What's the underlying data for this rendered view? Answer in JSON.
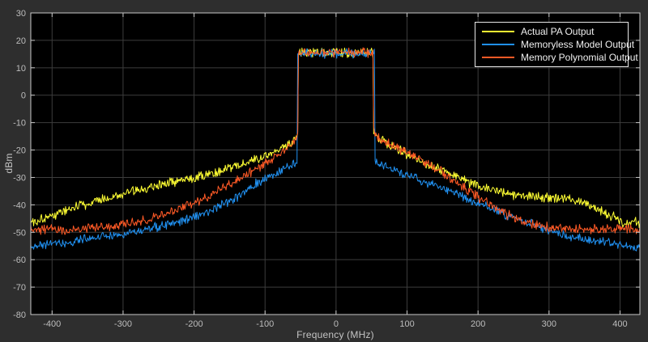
{
  "figure": {
    "background": "#2e2e2e",
    "plot_background": "#000000",
    "grid_color": "#3d3d3d",
    "axis_box_color": "#c9c9c9",
    "tick_label_color": "#bdbdbd",
    "axis_label_color": "#c4c4c4",
    "legend_background": "#000000",
    "legend_border_color": "#e8e8e8",
    "legend_text_color": "#f0f0f0"
  },
  "legend": {
    "entries": [
      {
        "label": "Actual PA Output",
        "color": "#ffff33"
      },
      {
        "label": "Memoryless Model Output",
        "color": "#2090f0"
      },
      {
        "label": "Memory Polynomial Output",
        "color": "#ff5a26"
      }
    ]
  },
  "chart_data": {
    "type": "line",
    "title": "",
    "xlabel": "Frequency (MHz)",
    "ylabel": "dBm",
    "xlim": [
      -430,
      428
    ],
    "ylim": [
      -80,
      30
    ],
    "xticks": [
      -400,
      -300,
      -200,
      -100,
      0,
      100,
      200,
      300,
      400
    ],
    "yticks": [
      -80,
      -70,
      -60,
      -50,
      -40,
      -30,
      -20,
      -10,
      0,
      10,
      20,
      30
    ],
    "grid": true,
    "legend_position": "top-right",
    "sample_step_mhz": 1,
    "description": "Power spectra: wideband signal occupying roughly -50 to +50 MHz at about +15.5 dBm with spectral-regrowth skirts. Values in envelope arrays are [frequency_MHz, dBm] mean-level breakpoints read from the plot; noise_db_pp is the visible peak-to-peak fuzz of each trace.",
    "series": [
      {
        "name": "Actual PA Output",
        "color": "#ffff33",
        "noise_db_pp": 4.5,
        "seed": 101,
        "envelope": [
          [
            -430,
            -46.5
          ],
          [
            -410,
            -44.5
          ],
          [
            -400,
            -44
          ],
          [
            -370,
            -41
          ],
          [
            -350,
            -39.5
          ],
          [
            -320,
            -37.5
          ],
          [
            -300,
            -36
          ],
          [
            -270,
            -34
          ],
          [
            -250,
            -32.5
          ],
          [
            -220,
            -31
          ],
          [
            -200,
            -30
          ],
          [
            -170,
            -28
          ],
          [
            -150,
            -26.5
          ],
          [
            -130,
            -25
          ],
          [
            -110,
            -23.5
          ],
          [
            -90,
            -21
          ],
          [
            -70,
            -18.5
          ],
          [
            -60,
            -17
          ],
          [
            -55,
            -15.5
          ],
          [
            -53.6,
            -14.5
          ],
          [
            -53,
            15
          ],
          [
            -48,
            15.5
          ],
          [
            48,
            15.5
          ],
          [
            52.4,
            15
          ],
          [
            53,
            -13.8
          ],
          [
            56,
            -15
          ],
          [
            62,
            -16.5
          ],
          [
            80,
            -18.5
          ],
          [
            100,
            -21.5
          ],
          [
            120,
            -24
          ],
          [
            140,
            -26.5
          ],
          [
            160,
            -29
          ],
          [
            180,
            -31
          ],
          [
            200,
            -33
          ],
          [
            230,
            -35
          ],
          [
            250,
            -36
          ],
          [
            280,
            -37
          ],
          [
            310,
            -37.5
          ],
          [
            335,
            -38.5
          ],
          [
            355,
            -40
          ],
          [
            375,
            -42.5
          ],
          [
            395,
            -45
          ],
          [
            408,
            -47.5
          ],
          [
            418,
            -46
          ],
          [
            428,
            -46.5
          ]
        ]
      },
      {
        "name": "Memoryless Model Output",
        "color": "#2090f0",
        "noise_db_pp": 4.0,
        "seed": 202,
        "envelope": [
          [
            -430,
            -55
          ],
          [
            -400,
            -54.5
          ],
          [
            -370,
            -53.5
          ],
          [
            -350,
            -52.5
          ],
          [
            -320,
            -51.5
          ],
          [
            -300,
            -50.5
          ],
          [
            -270,
            -49
          ],
          [
            -250,
            -48
          ],
          [
            -220,
            -46
          ],
          [
            -200,
            -44.5
          ],
          [
            -180,
            -42.5
          ],
          [
            -160,
            -40
          ],
          [
            -140,
            -37
          ],
          [
            -120,
            -33.5
          ],
          [
            -100,
            -30.5
          ],
          [
            -85,
            -28.5
          ],
          [
            -70,
            -26.5
          ],
          [
            -60,
            -25.5
          ],
          [
            -55,
            -24.5
          ],
          [
            -54,
            15.2
          ],
          [
            0,
            15.2
          ],
          [
            54,
            15.2
          ],
          [
            55,
            -24.5
          ],
          [
            70,
            -26
          ],
          [
            85,
            -27.5
          ],
          [
            100,
            -29
          ],
          [
            120,
            -31
          ],
          [
            140,
            -33
          ],
          [
            160,
            -35
          ],
          [
            180,
            -37
          ],
          [
            200,
            -39.5
          ],
          [
            220,
            -41.5
          ],
          [
            250,
            -44.5
          ],
          [
            280,
            -47.5
          ],
          [
            300,
            -49.5
          ],
          [
            320,
            -51
          ],
          [
            350,
            -52.5
          ],
          [
            380,
            -53.5
          ],
          [
            400,
            -54.5
          ],
          [
            428,
            -55.5
          ]
        ]
      },
      {
        "name": "Memory Polynomial Output",
        "color": "#ff5a26",
        "noise_db_pp": 4.0,
        "seed": 303,
        "envelope": [
          [
            -430,
            -49
          ],
          [
            -400,
            -49
          ],
          [
            -380,
            -49.5
          ],
          [
            -360,
            -49
          ],
          [
            -340,
            -48.5
          ],
          [
            -320,
            -48
          ],
          [
            -300,
            -47
          ],
          [
            -280,
            -46
          ],
          [
            -260,
            -45
          ],
          [
            -240,
            -43.5
          ],
          [
            -220,
            -41.5
          ],
          [
            -200,
            -39.5
          ],
          [
            -180,
            -37
          ],
          [
            -160,
            -34
          ],
          [
            -140,
            -31
          ],
          [
            -120,
            -28
          ],
          [
            -100,
            -25
          ],
          [
            -80,
            -21.5
          ],
          [
            -65,
            -18.5
          ],
          [
            -56,
            -16
          ],
          [
            -54,
            -13.5
          ],
          [
            -53,
            15.4
          ],
          [
            0,
            15.6
          ],
          [
            52,
            15.4
          ],
          [
            53,
            -12.5
          ],
          [
            56,
            -14.5
          ],
          [
            65,
            -16.5
          ],
          [
            80,
            -18.5
          ],
          [
            100,
            -21
          ],
          [
            120,
            -23.5
          ],
          [
            140,
            -26.5
          ],
          [
            160,
            -30
          ],
          [
            180,
            -33.5
          ],
          [
            200,
            -37
          ],
          [
            220,
            -40.5
          ],
          [
            240,
            -43.5
          ],
          [
            260,
            -45.5
          ],
          [
            280,
            -47
          ],
          [
            300,
            -48
          ],
          [
            320,
            -48.5
          ],
          [
            350,
            -49
          ],
          [
            380,
            -49
          ],
          [
            400,
            -48.5
          ],
          [
            428,
            -49.5
          ]
        ]
      }
    ]
  }
}
